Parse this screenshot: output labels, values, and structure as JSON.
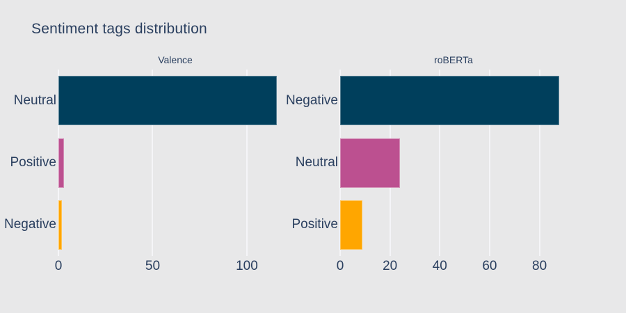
{
  "title": "Sentiment tags distribution",
  "colors": {
    "background": "#e8e8e9",
    "text": "#2a3f5f",
    "gridline": "#f5f5f8",
    "bar_dark_teal": "#003f5c",
    "bar_magenta": "#bc5090",
    "bar_orange": "#ffa600"
  },
  "chart_data": [
    {
      "type": "bar",
      "orientation": "horizontal",
      "title": "Valence",
      "categories": [
        "Neutral",
        "Positive",
        "Negative"
      ],
      "values": [
        116,
        3,
        2
      ],
      "bar_colors": [
        "#003f5c",
        "#bc5090",
        "#ffa600"
      ],
      "xticks": [
        0,
        50,
        100
      ],
      "xlim": [
        0,
        124
      ],
      "grid": true,
      "legend": false
    },
    {
      "type": "bar",
      "orientation": "horizontal",
      "title": "roBERTa",
      "categories": [
        "Negative",
        "Neutral",
        "Positive"
      ],
      "values": [
        88,
        24,
        9
      ],
      "bar_colors": [
        "#003f5c",
        "#bc5090",
        "#ffa600"
      ],
      "xticks": [
        0,
        20,
        40,
        60,
        80
      ],
      "xlim": [
        0,
        91
      ],
      "grid": true,
      "legend": false
    }
  ]
}
